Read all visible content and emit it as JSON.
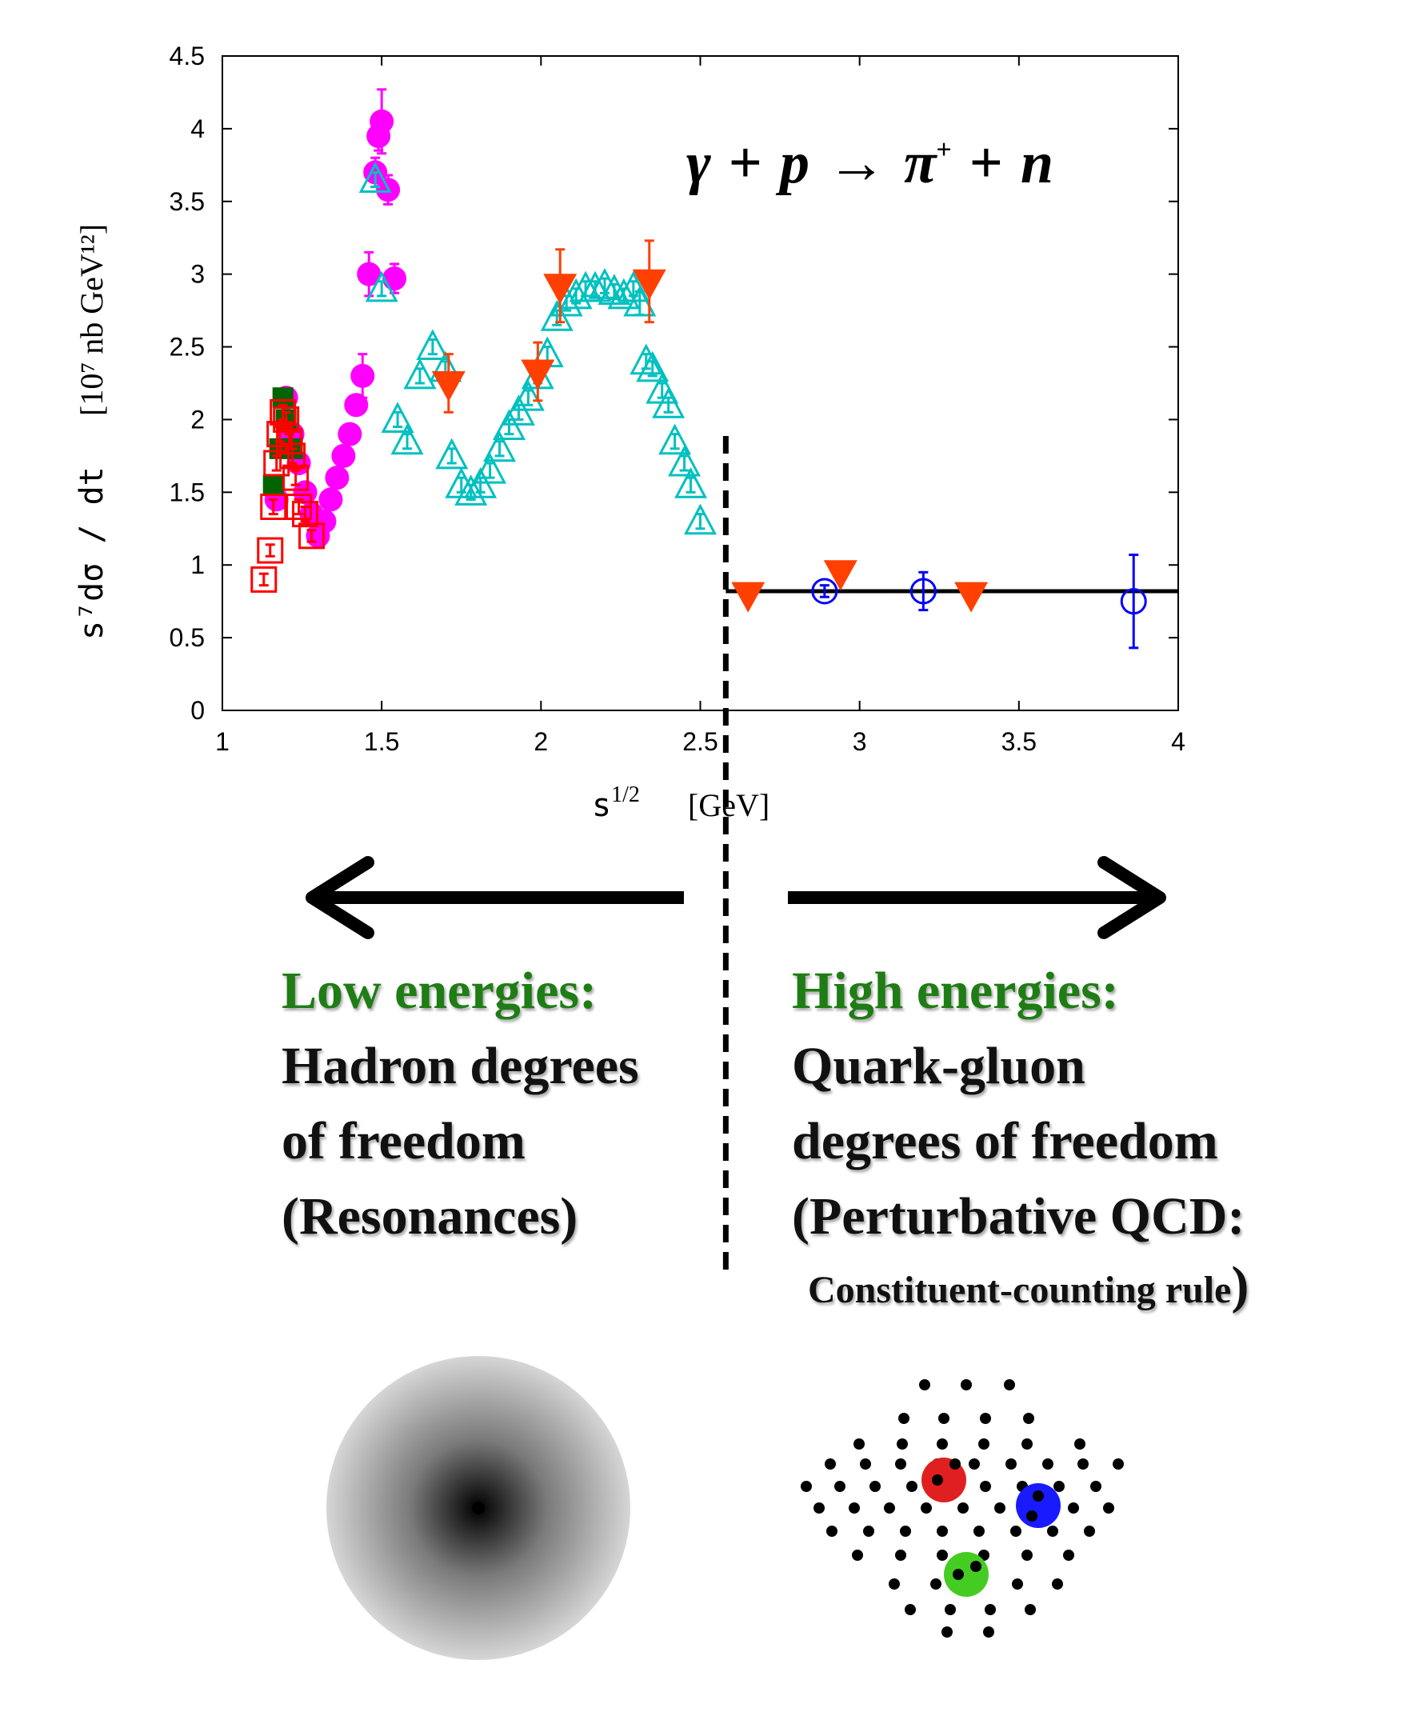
{
  "chart_data": {
    "type": "scatter",
    "title": "γ + p → π⁺ + n",
    "title_parts": {
      "gamma": "γ",
      "plus1": "+",
      "p": "p",
      "arrow": "→",
      "pi": "π",
      "pi_sup": "+",
      "plus2": "+",
      "n": "n"
    },
    "xlabel": "s",
    "xlabel_sup": "1/2",
    "xlabel_unit": "[GeV]",
    "ylabel": "s⁷dσ / dt",
    "ylabel_unit": "[10⁷ nb GeV¹²]",
    "xlim": [
      1,
      4
    ],
    "ylim": [
      0,
      4.5
    ],
    "x_ticks": [
      "1",
      "1.5",
      "2",
      "2.5",
      "3",
      "3.5",
      "4"
    ],
    "y_ticks": [
      "0",
      "0.5",
      "1",
      "1.5",
      "2",
      "2.5",
      "3",
      "3.5",
      "4",
      "4.5"
    ],
    "divider_x": 2.58,
    "fit_line": {
      "y": 0.82,
      "x_start": 2.58,
      "x_end": 4.0,
      "color": "#000000"
    },
    "series": [
      {
        "name": "magenta-circles",
        "marker": "filled-circle",
        "color": "#ff00ff",
        "points": [
          [
            1.2,
            2.15,
            0.05
          ],
          [
            1.22,
            1.9,
            0.05
          ],
          [
            1.24,
            1.7,
            0.05
          ],
          [
            1.26,
            1.5,
            0.05
          ],
          [
            1.28,
            1.35,
            0.05
          ],
          [
            1.3,
            1.2,
            0.05
          ],
          [
            1.32,
            1.3,
            0.05
          ],
          [
            1.34,
            1.45,
            0.05
          ],
          [
            1.36,
            1.6,
            0.05
          ],
          [
            1.38,
            1.75,
            0.05
          ],
          [
            1.4,
            1.9,
            0.05
          ],
          [
            1.42,
            2.1,
            0.05
          ],
          [
            1.44,
            2.3,
            0.15
          ],
          [
            1.46,
            3.0,
            0.15
          ],
          [
            1.48,
            3.7,
            0.1
          ],
          [
            1.49,
            3.95,
            0.1
          ],
          [
            1.5,
            4.05,
            0.22
          ],
          [
            1.52,
            3.58,
            0.1
          ],
          [
            1.54,
            2.97,
            0.1
          ],
          [
            1.17,
            1.45,
            0.05
          ]
        ]
      },
      {
        "name": "green-squares",
        "marker": "filled-square",
        "color": "#006400",
        "points": [
          [
            1.16,
            1.55,
            0.05
          ],
          [
            1.18,
            1.8,
            0.05
          ],
          [
            1.19,
            2.15,
            0.05
          ],
          [
            1.2,
            2.0,
            0.05
          ],
          [
            1.22,
            1.8,
            0.05
          ]
        ]
      },
      {
        "name": "red-open-squares",
        "marker": "open-square",
        "color": "#ff0000",
        "points": [
          [
            1.13,
            0.9,
            0.04
          ],
          [
            1.15,
            1.1,
            0.04
          ],
          [
            1.16,
            1.4,
            0.05
          ],
          [
            1.17,
            1.7,
            0.05
          ],
          [
            1.18,
            1.9,
            0.05
          ],
          [
            1.19,
            2.05,
            0.05
          ],
          [
            1.2,
            2.0,
            0.05
          ],
          [
            1.21,
            1.85,
            0.05
          ],
          [
            1.22,
            1.75,
            0.05
          ],
          [
            1.23,
            1.6,
            0.05
          ],
          [
            1.24,
            1.4,
            0.05
          ],
          [
            1.26,
            1.35,
            0.05
          ],
          [
            1.28,
            1.2,
            0.04
          ]
        ]
      },
      {
        "name": "cyan-open-triangles",
        "marker": "open-triangle-up",
        "color": "#00c0c0",
        "points": [
          [
            1.48,
            3.65,
            0.05
          ],
          [
            1.5,
            2.9,
            0.05
          ],
          [
            1.55,
            2.0,
            0.05
          ],
          [
            1.58,
            1.85,
            0.05
          ],
          [
            1.62,
            2.3,
            0.05
          ],
          [
            1.66,
            2.5,
            0.05
          ],
          [
            1.7,
            2.35,
            0.05
          ],
          [
            1.72,
            1.75,
            0.05
          ],
          [
            1.75,
            1.55,
            0.05
          ],
          [
            1.78,
            1.5,
            0.05
          ],
          [
            1.81,
            1.55,
            0.05
          ],
          [
            1.84,
            1.65,
            0.05
          ],
          [
            1.87,
            1.8,
            0.05
          ],
          [
            1.9,
            1.95,
            0.05
          ],
          [
            1.93,
            2.05,
            0.05
          ],
          [
            1.96,
            2.15,
            0.05
          ],
          [
            1.99,
            2.3,
            0.05
          ],
          [
            2.02,
            2.45,
            0.05
          ],
          [
            2.05,
            2.7,
            0.05
          ],
          [
            2.08,
            2.8,
            0.05
          ],
          [
            2.11,
            2.85,
            0.05
          ],
          [
            2.14,
            2.9,
            0.05
          ],
          [
            2.17,
            2.9,
            0.05
          ],
          [
            2.2,
            2.92,
            0.05
          ],
          [
            2.23,
            2.88,
            0.05
          ],
          [
            2.26,
            2.85,
            0.05
          ],
          [
            2.29,
            2.9,
            0.05
          ],
          [
            2.31,
            2.8,
            0.08
          ],
          [
            2.33,
            2.4,
            0.05
          ],
          [
            2.35,
            2.35,
            0.05
          ],
          [
            2.38,
            2.2,
            0.05
          ],
          [
            2.4,
            2.1,
            0.05
          ],
          [
            2.42,
            1.85,
            0.05
          ],
          [
            2.45,
            1.7,
            0.05
          ],
          [
            2.47,
            1.55,
            0.05
          ],
          [
            2.5,
            1.3,
            0.05
          ]
        ]
      },
      {
        "name": "orange-down-triangles",
        "marker": "filled-triangle-down",
        "color": "#ff4000",
        "points": [
          [
            1.71,
            2.25,
            0.2
          ],
          [
            1.99,
            2.33,
            0.2
          ],
          [
            2.06,
            2.92,
            0.25
          ],
          [
            2.34,
            2.95,
            0.28
          ],
          [
            2.65,
            0.8,
            0.04
          ],
          [
            2.94,
            0.95,
            0.04
          ],
          [
            3.35,
            0.8,
            0.04
          ]
        ]
      },
      {
        "name": "blue-open-circles",
        "marker": "open-circle",
        "color": "#0000ff",
        "points": [
          [
            2.89,
            0.82,
            0.04
          ],
          [
            3.2,
            0.82,
            0.13
          ],
          [
            3.86,
            0.75,
            0.32
          ]
        ]
      }
    ]
  },
  "annotations": {
    "low_heading": "Low energies:",
    "low_line1": "Hadron degrees",
    "low_line2": "of freedom",
    "low_line3": "(Resonances)",
    "high_heading": "High energies:",
    "high_line1": "Quark-gluon",
    "high_line2": "degrees of freedom",
    "high_line3": "(Perturbative QCD:",
    "high_line4": "Constituent-counting rule",
    "high_paren": ")"
  },
  "colors": {
    "green": "#1e7d14",
    "quark_red": "#e02020",
    "quark_blue": "#1a1aff",
    "quark_green": "#44cc22"
  }
}
